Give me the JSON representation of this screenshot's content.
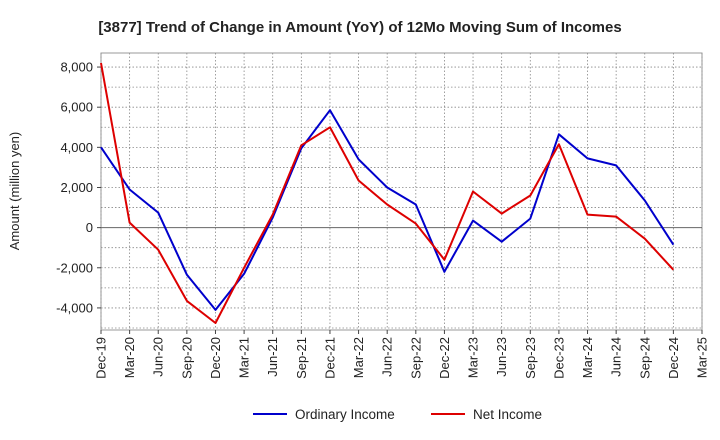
{
  "chart_data": {
    "type": "line",
    "title": "[3877]  Trend of Change in Amount (YoY) of 12Mo Moving Sum of Incomes",
    "ylabel": "Amount (million yen)",
    "xlabel": "",
    "ylim": [
      -5100,
      8700
    ],
    "yticks": [
      8000,
      6000,
      4000,
      2000,
      0,
      -2000,
      -4000
    ],
    "ytick_labels": [
      "8,000",
      "6,000",
      "4,000",
      "2,000",
      "0",
      "-2,000",
      "-4,000"
    ],
    "categories": [
      "Dec-19",
      "Mar-20",
      "Jun-20",
      "Sep-20",
      "Dec-20",
      "Mar-21",
      "Jun-21",
      "Sep-21",
      "Dec-21",
      "Mar-22",
      "Jun-22",
      "Sep-22",
      "Dec-22",
      "Mar-23",
      "Jun-23",
      "Sep-23",
      "Dec-23",
      "Mar-24",
      "Jun-24",
      "Sep-24",
      "Dec-24",
      "Mar-25"
    ],
    "series": [
      {
        "name": "Ordinary Income",
        "color": "#0000cc",
        "values": [
          4000,
          1900,
          750,
          -2350,
          -4100,
          -2300,
          500,
          3950,
          5850,
          3400,
          2000,
          1150,
          -2200,
          350,
          -700,
          450,
          4650,
          3450,
          3100,
          1350,
          -850,
          null
        ]
      },
      {
        "name": "Net Income",
        "color": "#dd0000",
        "values": [
          8200,
          250,
          -1100,
          -3650,
          -4750,
          -2000,
          650,
          4100,
          5000,
          2350,
          1150,
          200,
          -1600,
          1800,
          700,
          1600,
          4150,
          650,
          550,
          -550,
          -2100,
          null
        ]
      }
    ],
    "legend_position": "bottom-center",
    "grid": true
  }
}
